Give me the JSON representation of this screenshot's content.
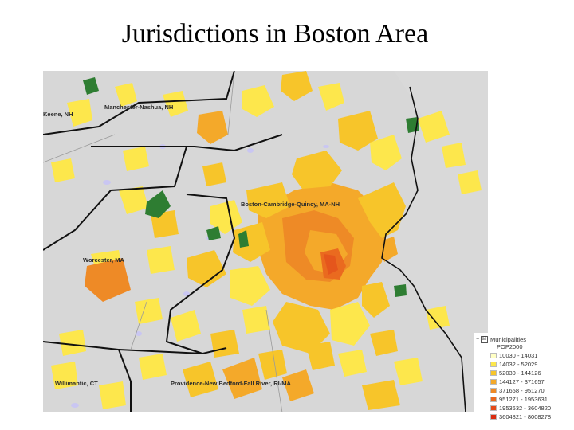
{
  "title": "Jurisdictions in Boston Area",
  "map": {
    "labels": {
      "manchester": "Manchester-Nashua, NH",
      "keene": "Keene, NH",
      "boston": "Boston-Cambridge-Quincy, MA-NH",
      "worcester": "Worcester, MA",
      "willimantic": "Willimantic, CT",
      "providence": "Providence-New Bedford-Fall River, RI-MA"
    },
    "colors": {
      "background": "#d7d7d7",
      "water": "#c9c6f2",
      "protected_land": "#2e7d32",
      "boundary": "#111111",
      "county_line": "#9a9a9a"
    }
  },
  "legend": {
    "expander": "−",
    "checkbox": "☒",
    "layer": "Municipalities",
    "field": "POP2000",
    "classes": [
      {
        "range": "10030 - 14031",
        "color": "#ffffc4"
      },
      {
        "range": "14032 - 52029",
        "color": "#fde74c"
      },
      {
        "range": "52030 - 144126",
        "color": "#f7c52a"
      },
      {
        "range": "144127 - 371657",
        "color": "#f4a92a"
      },
      {
        "range": "371658 - 951270",
        "color": "#ee8a26"
      },
      {
        "range": "951271 - 1953631",
        "color": "#ea6a1f"
      },
      {
        "range": "1953632 - 3604820",
        "color": "#e54a18"
      },
      {
        "range": "3604821 - 8008278",
        "color": "#d92d12"
      }
    ]
  }
}
